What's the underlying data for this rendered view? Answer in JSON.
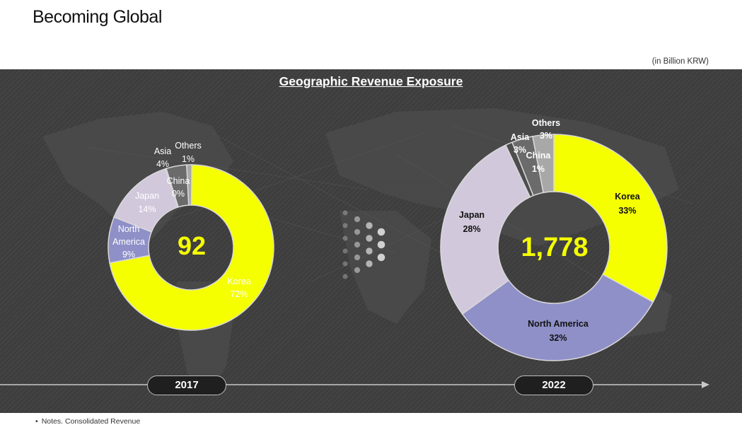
{
  "page": {
    "title": "Becoming Global",
    "unit_note": "(in Billion KRW)",
    "footnote": "Notes. Consolidated Revenue"
  },
  "colors": {
    "Korea": "#f5ff00",
    "North America": "#8f90c8",
    "Japan": "#d2c8dc",
    "China": "#4d4d4d",
    "Asia": "#6b6b6b",
    "Others": "#a8a8a8",
    "panel_bg": "#3d3d3d",
    "total_text": "#f5ff00"
  },
  "chart_data": [
    {
      "type": "pie",
      "subtype": "donut",
      "title": "Geographic Revenue Exposure",
      "year": "2017",
      "total": "92",
      "slices": [
        {
          "name": "Korea",
          "label": "Korea",
          "value": 72,
          "value_label": "72%"
        },
        {
          "name": "North America",
          "label": "North America",
          "value": 9,
          "value_label": "9%"
        },
        {
          "name": "Japan",
          "label": "Japan",
          "value": 14,
          "value_label": "14%"
        },
        {
          "name": "China",
          "label": "China",
          "value": 0,
          "value_label": "0%"
        },
        {
          "name": "Asia",
          "label": "Asia",
          "value": 4,
          "value_label": "4%"
        },
        {
          "name": "Others",
          "label": "Others",
          "value": 1,
          "value_label": "1%"
        }
      ]
    },
    {
      "type": "pie",
      "subtype": "donut",
      "title": "Geographic Revenue Exposure",
      "year": "2022",
      "total": "1,778",
      "slices": [
        {
          "name": "Korea",
          "label": "Korea",
          "value": 33,
          "value_label": "33%"
        },
        {
          "name": "North America",
          "label": "North America",
          "value": 32,
          "value_label": "32%"
        },
        {
          "name": "Japan",
          "label": "Japan",
          "value": 28,
          "value_label": "28%"
        },
        {
          "name": "China",
          "label": "China",
          "value": 1,
          "value_label": "1%"
        },
        {
          "name": "Asia",
          "label": "Asia",
          "value": 3,
          "value_label": "3%"
        },
        {
          "name": "Others",
          "label": "Others",
          "value": 3,
          "value_label": "3%"
        }
      ]
    }
  ]
}
